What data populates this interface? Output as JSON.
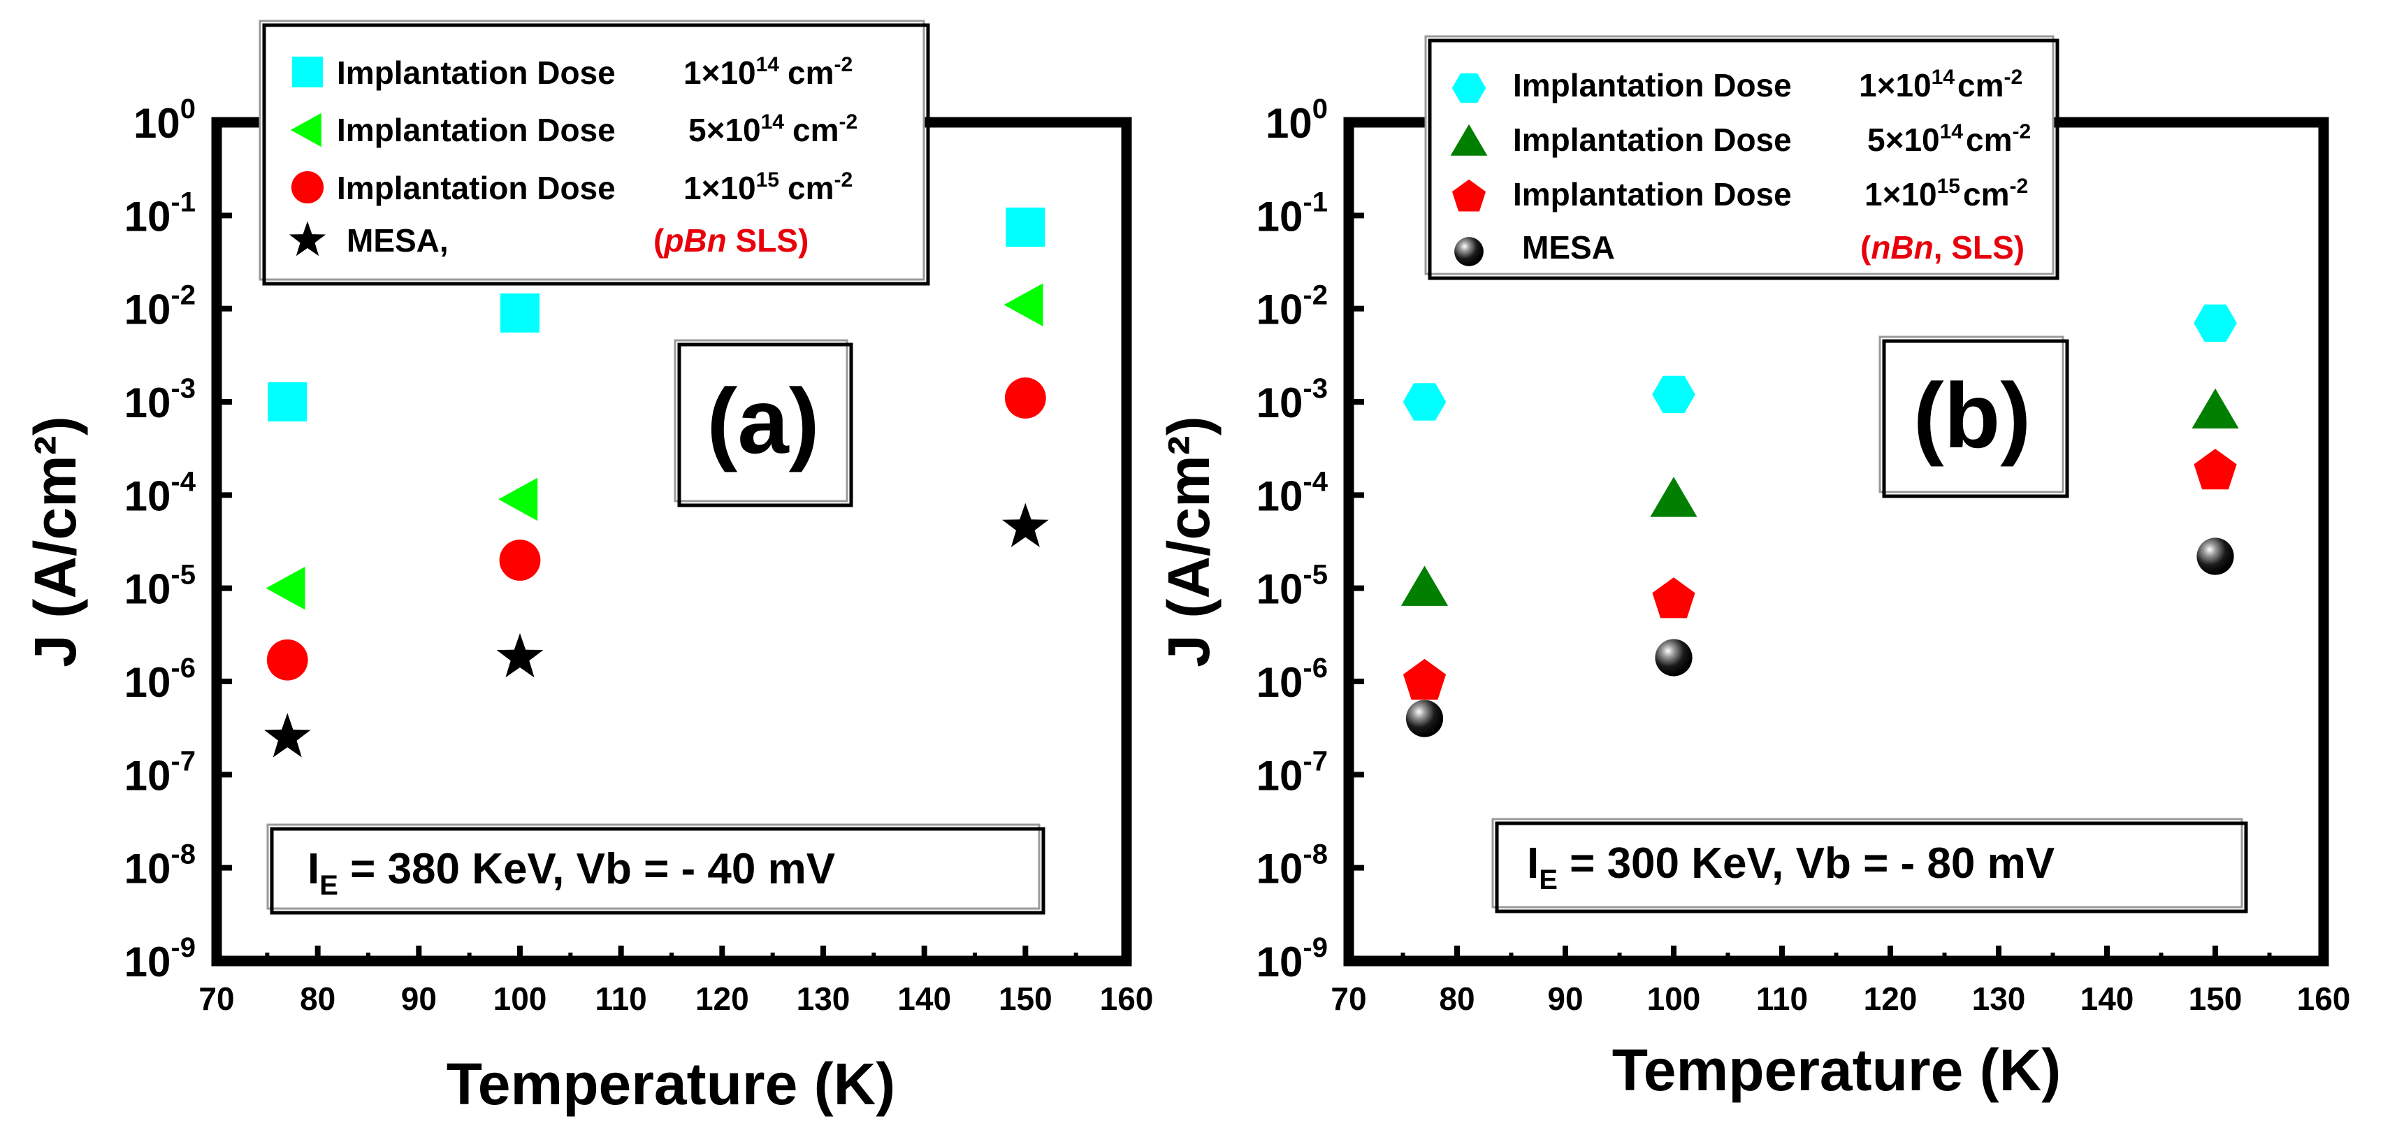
{
  "chart_data": [
    {
      "type": "scatter",
      "panel_label": "(a)",
      "xlabel": "Temperature (K)",
      "ylabel": "J (A/cm²)",
      "xlim": [
        70,
        160
      ],
      "ylim_log10": [
        -9,
        0
      ],
      "x_ticks": [
        "70",
        "80",
        "90",
        "100",
        "110",
        "120",
        "130",
        "140",
        "150",
        "160"
      ],
      "condition": {
        "I_sym": "I",
        "I_sub": "E",
        "energy": " = 380 KeV, ",
        "vb": "Vb",
        "bias": " = - 40 mV"
      },
      "legend_tag": {
        "prefix": "(",
        "italic": "pBn",
        "suffix": " SLS)"
      },
      "series": [
        {
          "name": "Implantation Dose",
          "dose_prefix": "1×10",
          "exp": "14",
          "unit": "cm",
          "unit_exp": "-2",
          "marker": "square",
          "color": "#00ffff",
          "points": [
            {
              "x": 77,
              "y": 0.001
            },
            {
              "x": 100,
              "y": 0.009
            },
            {
              "x": 150,
              "y": 0.075
            }
          ]
        },
        {
          "name": "Implantation Dose",
          "dose_prefix": "5×10",
          "exp": "14",
          "unit": "cm",
          "unit_exp": "-2",
          "marker": "triangle-left",
          "color": "#00ff00",
          "points": [
            {
              "x": 77,
              "y": 1e-05
            },
            {
              "x": 100,
              "y": 9e-05
            },
            {
              "x": 150,
              "y": 0.011
            }
          ]
        },
        {
          "name": "Implantation Dose",
          "dose_prefix": "1×10",
          "exp": "15",
          "unit": "cm",
          "unit_exp": "-2",
          "marker": "circle",
          "color": "#ff0000",
          "points": [
            {
              "x": 77,
              "y": 1.7e-06
            },
            {
              "x": 100,
              "y": 2e-05
            },
            {
              "x": 150,
              "y": 0.0011
            }
          ]
        },
        {
          "name": "MESA,",
          "marker": "star",
          "color": "#000000",
          "points": [
            {
              "x": 77,
              "y": 2.5e-07
            },
            {
              "x": 100,
              "y": 1.8e-06
            },
            {
              "x": 150,
              "y": 4.5e-05
            }
          ]
        }
      ]
    },
    {
      "type": "scatter",
      "panel_label": "(b)",
      "xlabel": "Temperature (K)",
      "ylabel": "J (A/cm²)",
      "xlim": [
        70,
        160
      ],
      "ylim_log10": [
        -9,
        0
      ],
      "x_ticks": [
        "70",
        "80",
        "90",
        "100",
        "110",
        "120",
        "130",
        "140",
        "150",
        "160"
      ],
      "condition": {
        "I_sym": "I",
        "I_sub": "E",
        "energy": " = 300 KeV, ",
        "vb": "Vb",
        "bias": " = - 80 mV"
      },
      "legend_tag": {
        "prefix": "(",
        "italic": "nBn",
        "suffix": ", SLS)"
      },
      "series": [
        {
          "name": "Implantation Dose",
          "dose_prefix": "1×10",
          "exp": "14",
          "unit": "cm",
          "unit_exp": "-2",
          "marker": "hexagon",
          "color": "#00ffff",
          "points": [
            {
              "x": 77,
              "y": 0.001
            },
            {
              "x": 100,
              "y": 0.0012
            },
            {
              "x": 150,
              "y": 0.007
            }
          ]
        },
        {
          "name": "Implantation Dose",
          "dose_prefix": "5×10",
          "exp": "14",
          "unit": "cm",
          "unit_exp": "-2",
          "marker": "triangle-up",
          "color": "#007f00",
          "points": [
            {
              "x": 77,
              "y": 1e-05
            },
            {
              "x": 100,
              "y": 9e-05
            },
            {
              "x": 150,
              "y": 0.0008
            }
          ]
        },
        {
          "name": "Implantation Dose",
          "dose_prefix": "1×10",
          "exp": "15",
          "unit": "cm",
          "unit_exp": "-2",
          "marker": "pentagon",
          "color": "#ff0000",
          "points": [
            {
              "x": 77,
              "y": 1e-06
            },
            {
              "x": 100,
              "y": 7.5e-06
            },
            {
              "x": 150,
              "y": 0.00018
            }
          ]
        },
        {
          "name": "MESA",
          "marker": "sphere",
          "color": "#000000",
          "points": [
            {
              "x": 77,
              "y": 4e-07
            },
            {
              "x": 100,
              "y": 1.8e-06
            },
            {
              "x": 150,
              "y": 2.2e-05
            }
          ]
        }
      ]
    }
  ]
}
